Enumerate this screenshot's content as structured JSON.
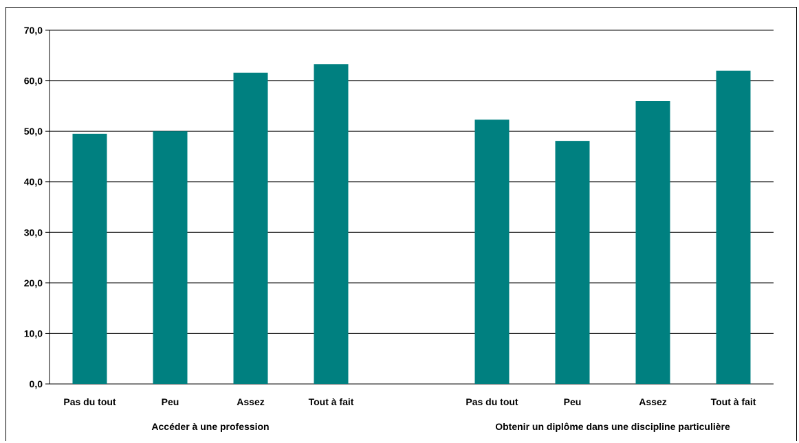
{
  "chart_data": {
    "type": "bar",
    "groups": [
      {
        "label": "Accéder à une profession",
        "categories": [
          "Pas du tout",
          "Peu",
          "Assez",
          "Tout à fait"
        ],
        "values": [
          49.5,
          50.0,
          61.6,
          63.3
        ]
      },
      {
        "label": "Obtenir un diplôme dans une discipline particulière",
        "categories": [
          "Pas du tout",
          "Peu",
          "Assez",
          "Tout à fait"
        ],
        "values": [
          52.3,
          48.1,
          56.0,
          62.0
        ]
      }
    ],
    "yticks": [
      "0,0",
      "10,0",
      "20,0",
      "30,0",
      "40,0",
      "50,0",
      "60,0",
      "70,0"
    ],
    "ylim": [
      0,
      70
    ],
    "grid": true,
    "bar_color": "#008080"
  }
}
